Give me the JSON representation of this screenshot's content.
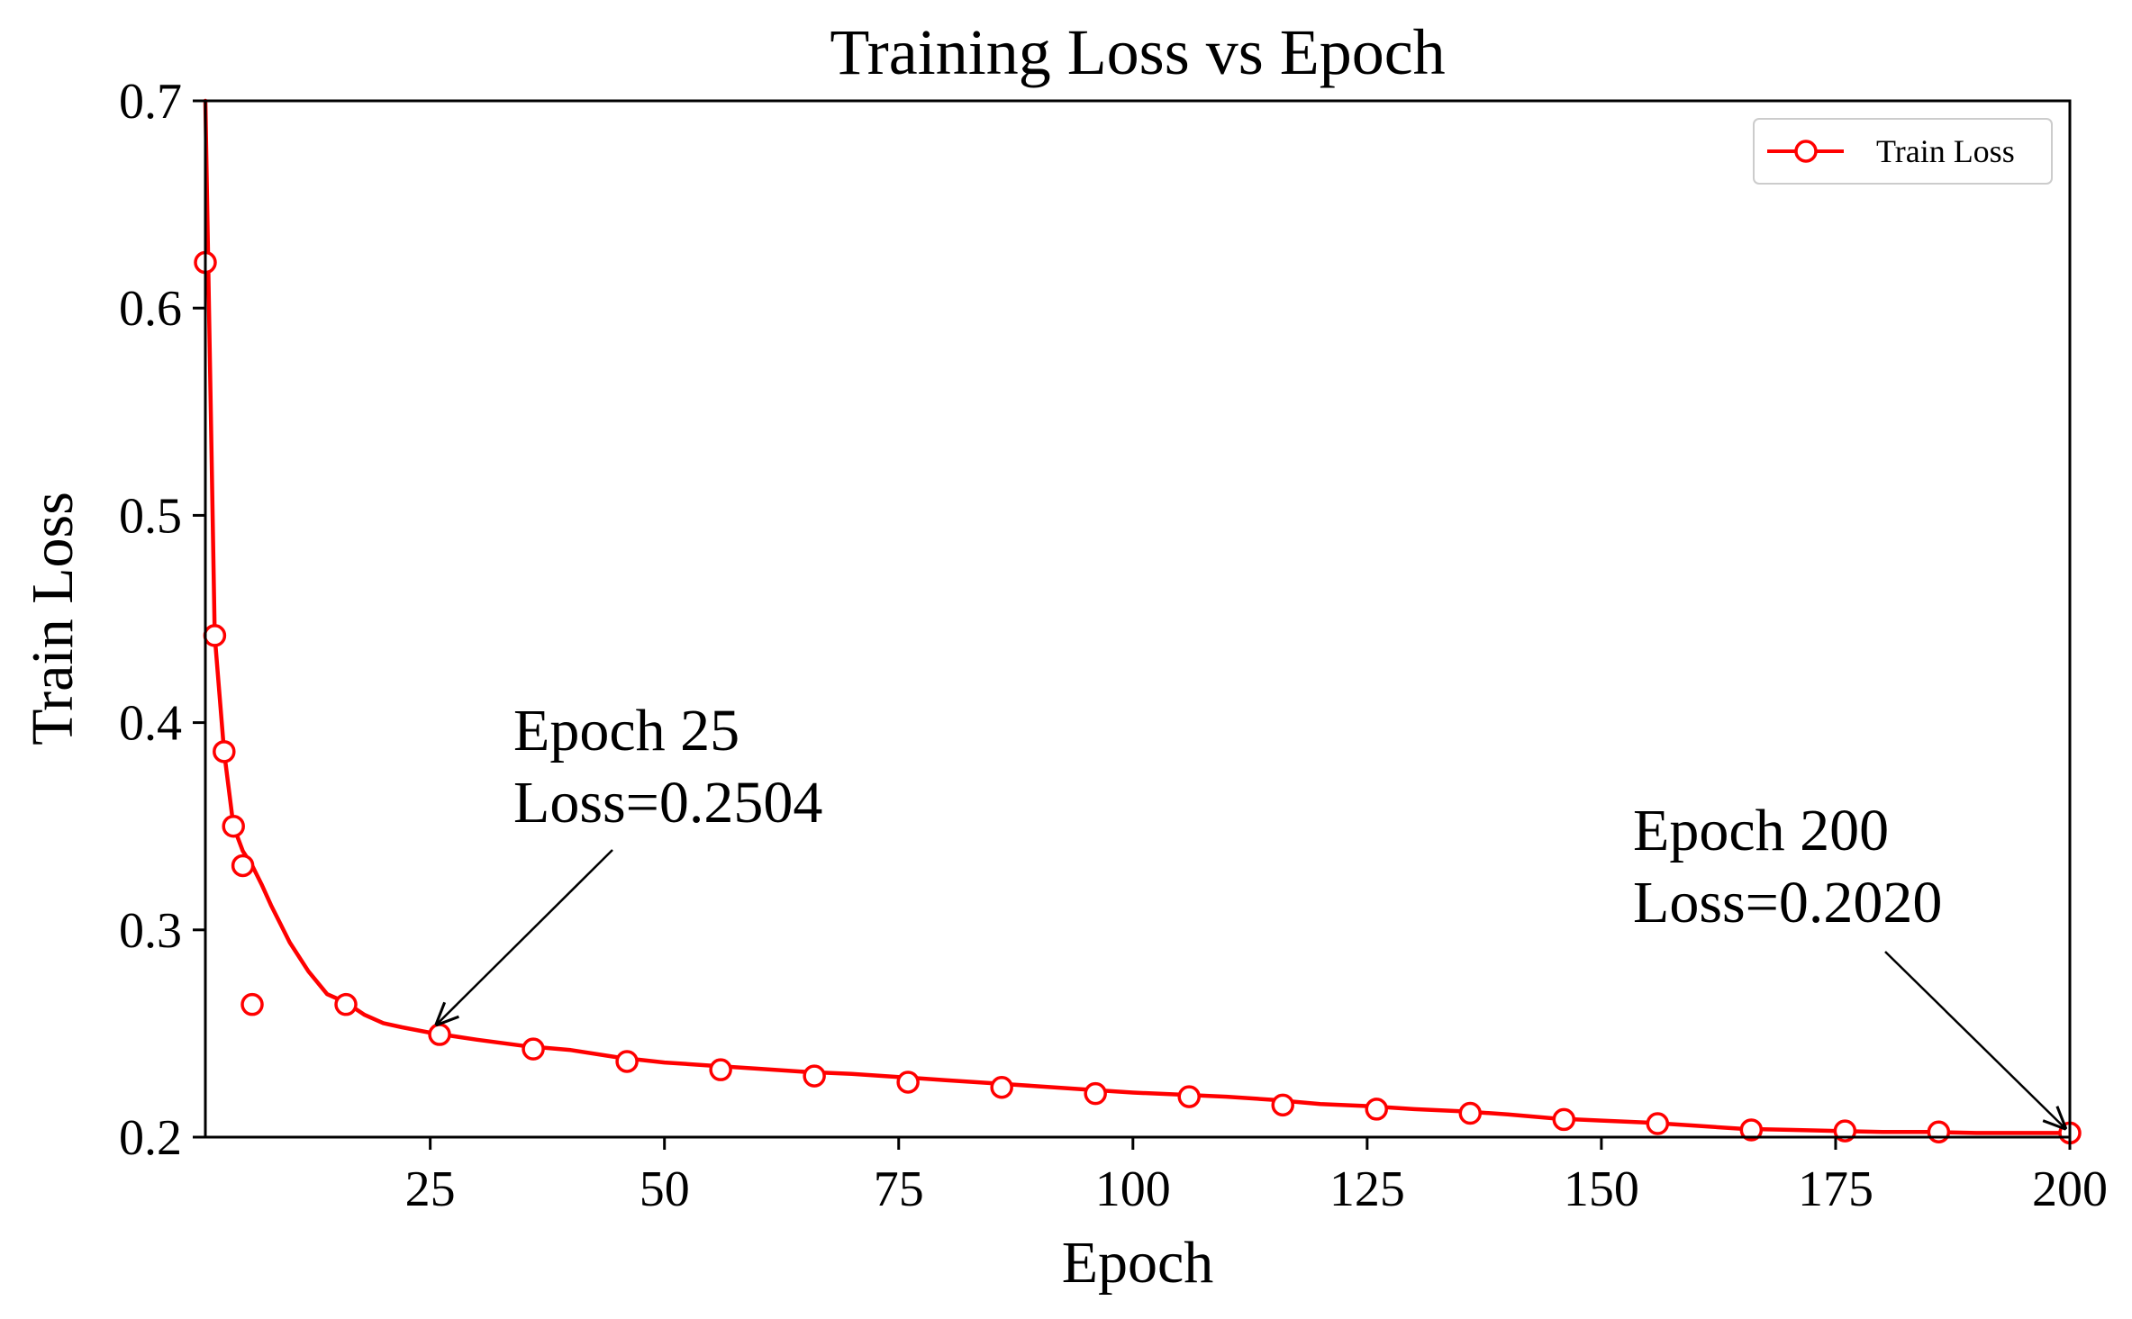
{
  "chart_data": {
    "type": "line",
    "title": "Training Loss vs Epoch",
    "xlabel": "Epoch",
    "ylabel": "Train Loss",
    "xlim": [
      1,
      200
    ],
    "ylim": [
      0.2,
      0.7
    ],
    "x_ticks": [
      25,
      50,
      75,
      100,
      125,
      150,
      175,
      200
    ],
    "y_ticks": [
      0.2,
      0.3,
      0.4,
      0.5,
      0.6,
      0.7
    ],
    "x_tick_labels": [
      "25",
      "50",
      "75",
      "100",
      "125",
      "150",
      "175",
      "200"
    ],
    "y_tick_labels": [
      "0.2",
      "0.3",
      "0.4",
      "0.5",
      "0.6",
      "0.7"
    ],
    "grid": false,
    "legend_position": "top-right",
    "series": [
      {
        "name": "Train Loss",
        "color": "#ff0000",
        "marker": "hollow-circle",
        "line_x": [
          1,
          2,
          3,
          4,
          5,
          6,
          7,
          8,
          9,
          10,
          12,
          14,
          16,
          18,
          20,
          22,
          25,
          30,
          35,
          40,
          45,
          50,
          55,
          60,
          65,
          70,
          75,
          80,
          85,
          90,
          95,
          100,
          105,
          110,
          115,
          120,
          125,
          130,
          135,
          140,
          145,
          150,
          155,
          160,
          165,
          170,
          175,
          180,
          185,
          190,
          195,
          200
        ],
        "line_y": [
          0.705,
          0.442,
          0.386,
          0.35,
          0.338,
          0.331,
          0.322,
          0.312,
          0.303,
          0.294,
          0.28,
          0.269,
          0.265,
          0.259,
          0.255,
          0.253,
          0.2504,
          0.247,
          0.244,
          0.242,
          0.2385,
          0.236,
          0.2345,
          0.233,
          0.2315,
          0.2305,
          0.229,
          0.2275,
          0.226,
          0.2245,
          0.223,
          0.2215,
          0.2205,
          0.2195,
          0.218,
          0.216,
          0.215,
          0.2135,
          0.2125,
          0.211,
          0.209,
          0.208,
          0.207,
          0.2055,
          0.204,
          0.2035,
          0.203,
          0.2025,
          0.2025,
          0.202,
          0.202,
          0.202
        ],
        "marker_x": [
          1,
          2,
          3,
          4,
          5,
          6,
          16,
          26,
          36,
          46,
          56,
          66,
          76,
          86,
          96,
          106,
          116,
          126,
          136,
          146,
          156,
          166,
          176,
          186,
          200
        ],
        "marker_y": [
          0.622,
          0.442,
          0.386,
          0.35,
          0.331,
          0.264,
          0.264,
          0.2495,
          0.2425,
          0.2365,
          0.2325,
          0.2295,
          0.2265,
          0.224,
          0.221,
          0.2195,
          0.2155,
          0.2135,
          0.2115,
          0.2085,
          0.2065,
          0.2035,
          0.203,
          0.2025,
          0.202
        ]
      }
    ],
    "annotations": [
      {
        "lines": [
          "Epoch 25",
          "Loss=0.2504"
        ],
        "point": [
          25,
          0.2504
        ]
      },
      {
        "lines": [
          "Epoch 200",
          "Loss=0.2020"
        ],
        "point": [
          200,
          0.202
        ]
      }
    ]
  }
}
